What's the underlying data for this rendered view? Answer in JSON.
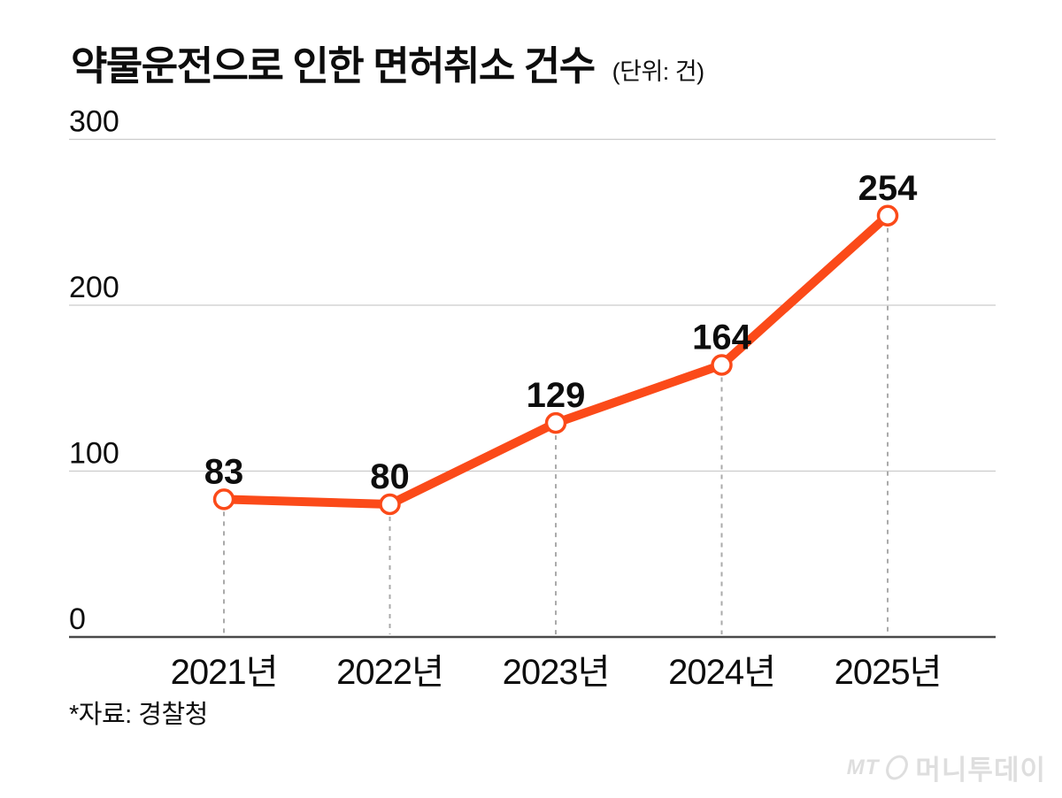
{
  "header": {
    "title": "약물운전으로 인한 면허취소 건수",
    "unit_note": "(단위: 건)"
  },
  "chart_data": {
    "type": "line",
    "title": "약물운전으로 인한 면허취소 건수",
    "unit_label": "(단위: 건)",
    "categories": [
      "2021년",
      "2022년",
      "2023년",
      "2024년",
      "2025년"
    ],
    "values": [
      83,
      80,
      129,
      164,
      254
    ],
    "yticks": [
      0,
      100,
      200,
      300
    ],
    "ylim": [
      0,
      300
    ],
    "grid": true,
    "legend": "none",
    "line_color": "#fb4a19",
    "marker_style": "open-circle-white",
    "dropline_style": "dashed-gray",
    "grid_color": "#cccccc",
    "axis_color": "#4a4a4a",
    "dropline_color": "#aaaaaa",
    "label_color": "#0d0d0d"
  },
  "footer": {
    "source": "*자료: 경찰청"
  },
  "watermark": {
    "mt": "MT",
    "name": "머니투데이"
  }
}
